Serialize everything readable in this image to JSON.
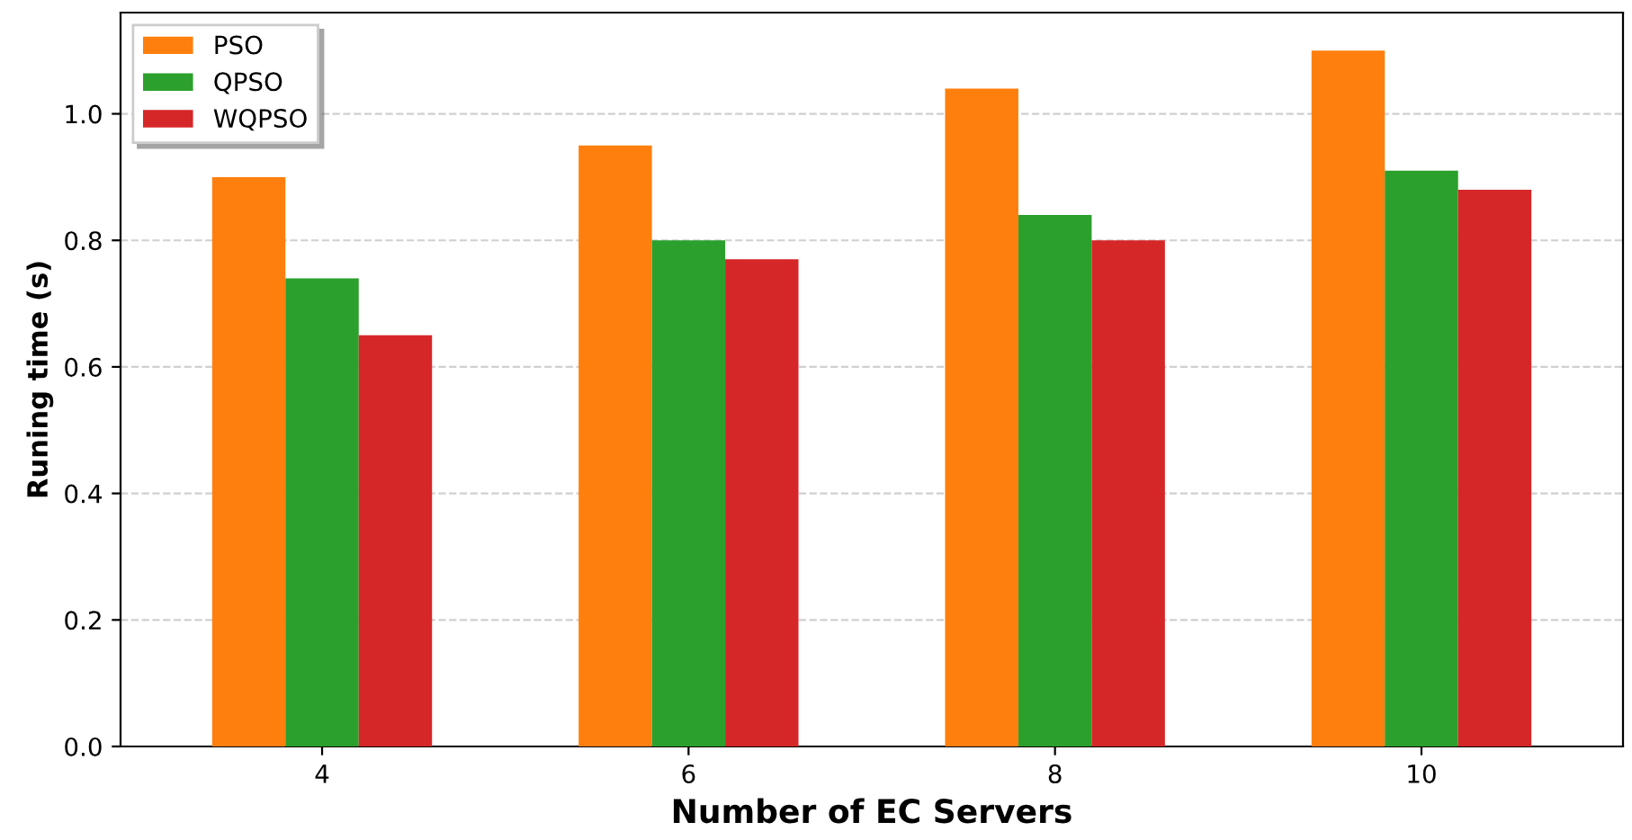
{
  "chart_data": {
    "type": "bar",
    "xlabel": "Number of EC Servers",
    "ylabel": "Runing time (s)",
    "categories": [
      "4",
      "6",
      "8",
      "10"
    ],
    "series": [
      {
        "name": "PSO",
        "color": "#ff7f0e",
        "values": [
          0.9,
          0.95,
          1.04,
          1.1
        ]
      },
      {
        "name": "QPSO",
        "color": "#2ca02c",
        "values": [
          0.74,
          0.8,
          0.84,
          0.91
        ]
      },
      {
        "name": "WQPSO",
        "color": "#d62728",
        "values": [
          0.65,
          0.77,
          0.8,
          0.88
        ]
      }
    ],
    "ylim": [
      0,
      1.16
    ],
    "yticks": [
      {
        "value": 0,
        "label": "0.0"
      },
      {
        "value": 0.2,
        "label": "0.2"
      },
      {
        "value": 0.4,
        "label": "0.4"
      },
      {
        "value": 0.6,
        "label": "0.6"
      },
      {
        "value": 0.8,
        "label": "0.8"
      },
      {
        "value": 1.0,
        "label": "1.0"
      }
    ],
    "grid": "y",
    "legend": "top left"
  }
}
